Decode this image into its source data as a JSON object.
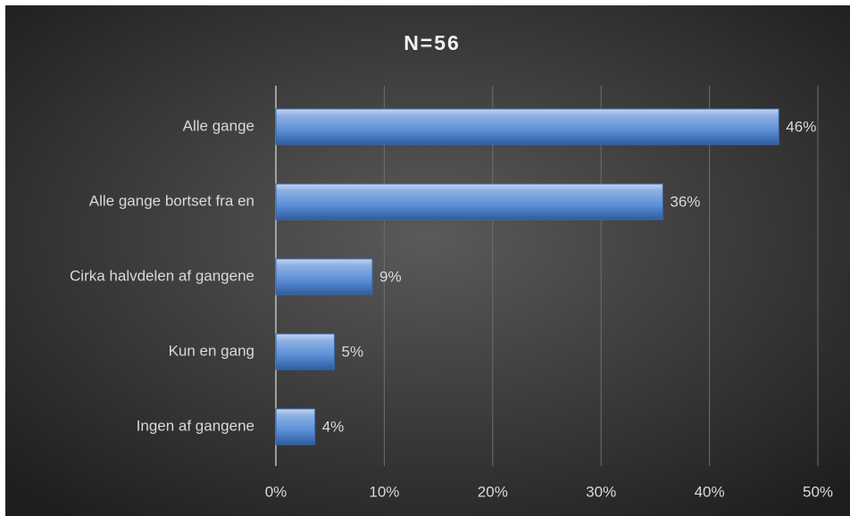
{
  "chart_data": {
    "type": "barh",
    "title": "N=56",
    "categories": [
      "Alle gange",
      "Alle gange bortset fra en",
      "Cirka halvdelen af gangene",
      "Kun en gang",
      "Ingen af gangene"
    ],
    "values": [
      46.4,
      35.7,
      8.9,
      5.4,
      3.6
    ],
    "value_labels": [
      "46%",
      "36%",
      "9%",
      "5%",
      "4%"
    ],
    "color": "#5b8fd6",
    "xlim": [
      0,
      50
    ],
    "xticks": [
      {
        "value": 0,
        "label": "0%"
      },
      {
        "value": 10,
        "label": "10%"
      },
      {
        "value": 20,
        "label": "20%"
      },
      {
        "value": 30,
        "label": "30%"
      },
      {
        "value": 40,
        "label": "40%"
      },
      {
        "value": 50,
        "label": "50%"
      }
    ],
    "grid": true
  }
}
